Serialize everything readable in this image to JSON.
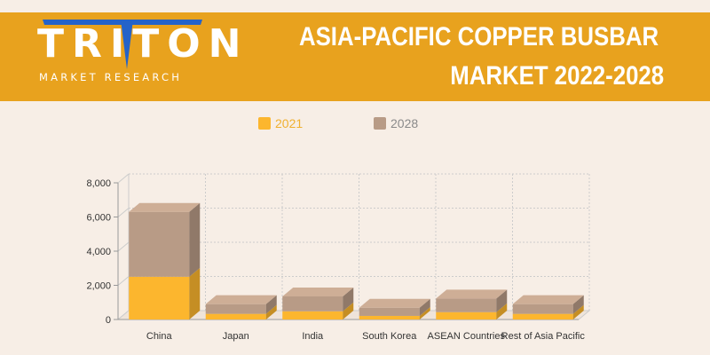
{
  "brand": {
    "logo_word": "TRITON",
    "logo_sub": "MARKET RESEARCH"
  },
  "header": {
    "title_line1": "ASIA-PACIFIC COPPER BUSBAR",
    "title_line2": "MARKET 2022-2028"
  },
  "colors": {
    "banner": "#e8a21e",
    "background": "#f7eee6",
    "series_2021": "#fcb62e",
    "series_2028": "#b89b86"
  },
  "chart_data": {
    "type": "bar",
    "stacked": true,
    "three_d": true,
    "title": "",
    "xlabel": "",
    "ylabel": "",
    "categories": [
      "China",
      "Japan",
      "India",
      "South Korea",
      "ASEAN Countries",
      "Rest of Asia Pacific"
    ],
    "series": [
      {
        "name": "2021",
        "color": "#fcb62e",
        "values": [
          2500,
          330,
          480,
          210,
          430,
          330
        ]
      },
      {
        "name": "2028",
        "color": "#b89b86",
        "values": [
          3800,
          570,
          870,
          480,
          800,
          570
        ]
      }
    ],
    "ylim": [
      0,
      8000
    ],
    "yticks": [
      "0",
      "2,000",
      "4,000",
      "6,000",
      "8,000"
    ],
    "ytick_values": [
      0,
      2000,
      4000,
      6000,
      8000
    ],
    "grid": true,
    "legend_position": "top"
  }
}
